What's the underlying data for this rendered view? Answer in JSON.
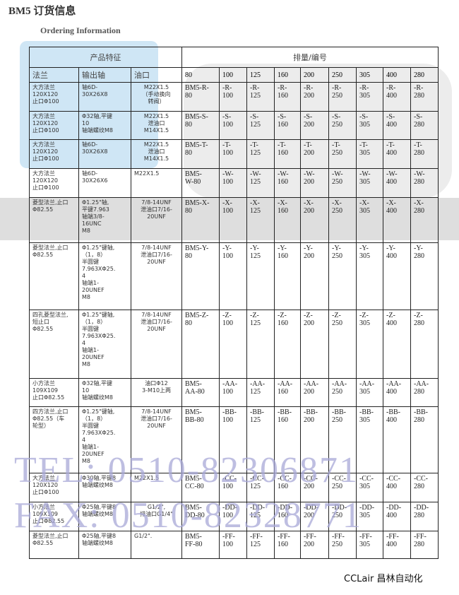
{
  "title": "BM5 订货信息",
  "subtitle": "Ordering Information",
  "header": {
    "features": "产品特征",
    "displacement": "排量/编号",
    "flange": "法兰",
    "shaft": "输出轴",
    "port": "油口",
    "sizes": [
      "80",
      "100",
      "125",
      "160",
      "200",
      "250",
      "305",
      "400",
      "280"
    ]
  },
  "rows": [
    {
      "flange": "大方法兰\n120X120\n止口Φ100",
      "shaft": "轴6D-\n30X26X8",
      "port": "M22X1.5\n（手动换向\n转阀）",
      "codes": [
        "BM5-R-\n80",
        "-R-\n100",
        "-R-\n125",
        "-R-\n160",
        "-R-\n200",
        "-R-\n250",
        "-R-\n305",
        "-R-\n400",
        "-R-\n280"
      ]
    },
    {
      "flange": "大方法兰\n120X120\n止口Φ100",
      "shaft": "Φ32轴,平键\n10\n轴端螺纹M8",
      "port": "M22X1.5\n泄油口\nM14X1.5",
      "codes": [
        "BM5-S-\n80",
        "-S-\n100",
        "-S-\n125",
        "-S-\n160",
        "-S-\n200",
        "-S-\n250",
        "-S-\n305",
        "-S-\n400",
        "-S-\n280"
      ]
    },
    {
      "flange": "大方法兰\n120X120\n止口Φ100",
      "shaft": "轴6D-\n30X26X8",
      "port": "M22X1.5\n泄油口\nM14X1.5",
      "codes": [
        "BM5-T-\n80",
        "-T-\n100",
        "-T-\n125",
        "-T-\n160",
        "-T-\n200",
        "-T-\n250",
        "-T-\n305",
        "-T-\n400",
        "-T-\n280"
      ]
    },
    {
      "flange": "大方法兰\n120X120\n止口Φ100",
      "shaft": "轴6D-\n30X26X6",
      "port": "M22X1.5",
      "portLeft": true,
      "codes": [
        "BM5-\nW-80",
        "-W-\n100",
        "-W-\n125",
        "-W-\n160",
        "-W-\n200",
        "-W-\n250",
        "-W-\n305",
        "-W-\n400",
        "-W-\n280"
      ]
    },
    {
      "flange": "菱型法兰,止口\nΦ82.55",
      "shaft": "Φ1.25\"轴,\n平键7.963\n轴端3/8-\n16UNC\nM8",
      "port": "7/8-14UNF\n泄油口7/16-\n20UNF",
      "codes": [
        "BM5-X-\n80",
        "-X-\n100",
        "-X-\n125",
        "-X-\n160",
        "-X-\n200",
        "-X-\n250",
        "-X-\n305",
        "-X-\n400",
        "-X-\n280"
      ]
    },
    {
      "flange": "菱型法兰,止口\nΦ82.55",
      "shaft": "Φ1.25\"键轴,\n（1，8）\n半圆键\n7.963XΦ25.\n4\n轴端1-\n20UNEF\nM8",
      "port": "7/8-14UNF\n泄油口7/16-\n20UNF",
      "codes": [
        "BM5-Y-\n80",
        "-Y-\n100",
        "-Y-\n125",
        "-Y-\n160",
        "-Y-\n200",
        "-Y-\n250",
        "-Y-\n305",
        "-Y-\n400",
        "-Y-\n280"
      ]
    },
    {
      "flange": "四孔菱型法兰,\n短止口\nΦ82.55",
      "shaft": "Φ1.25\"键轴,\n（1，8）\n半圆键\n7.963XΦ25.\n4\n轴端1-\n20UNEF\nM8",
      "port": "7/8-14UNF\n泄油口7/16-\n20UNF",
      "codes": [
        "BM5-Z-\n80",
        "-Z-\n100",
        "-Z-\n125",
        "-Z-\n160",
        "-Z-\n200",
        "-Z-\n250",
        "-Z-\n305",
        "-Z-\n400",
        "-Z-\n280"
      ]
    },
    {
      "flange": "小方法兰\n109X109\n止口Φ82.55",
      "shaft": "Φ32轴,平键\n10\n轴端螺纹M8",
      "port": "油口Φ12\n3-M10上两",
      "codes": [
        "BM5-\nAA-80",
        "-AA-\n100",
        "-AA-\n125",
        "-AA-\n160",
        "-AA-\n200",
        "-AA-\n250",
        "-AA-\n305",
        "-AA-\n400",
        "-AA-\n280"
      ]
    },
    {
      "flange": "四方法兰,止口\nΦ82.55（车\n轮型）",
      "shaft": "Φ1.25\"键轴,\n（1，8）\n半圆键\n7.963XΦ25.\n4\n轴端1-\n20UNEF\nM8",
      "port": "7/8-14UNF\n泄油口7/16-\n20UNF",
      "codes": [
        "BM5-\nBB-80",
        "-BB-\n100",
        "-BB-\n125",
        "-BB-\n160",
        "-BB-\n200",
        "-BB-\n250",
        "-BB-\n305",
        "-BB-\n400",
        "-BB-\n280"
      ]
    },
    {
      "flange": "大方法兰\n120X120\n止口Φ100",
      "shaft": "Φ30轴,平键8\n轴端螺纹M8",
      "port": "M22X1.5",
      "portLeft": true,
      "codes": [
        "BM5-\nCC-80",
        "-CC-\n100",
        "-CC-\n125",
        "-CC-\n160",
        "-CC-\n200",
        "-CC-\n250",
        "-CC-\n305",
        "-CC-\n400",
        "-CC-\n280"
      ]
    },
    {
      "flange": "小方法兰\n109X109\n止口Φ82.55",
      "shaft": "Φ25轴,平键8\n轴端螺纹M8",
      "port": "G1/2\",\n排油口G1/4\"",
      "codes": [
        "BM5-\nDD-80",
        "-DD-\n100",
        "-DD-\n125",
        "-DD-\n160",
        "-DD-\n200",
        "-DD-\n250",
        "-DD-\n305",
        "-DD-\n400",
        "-DD-\n280"
      ]
    },
    {
      "flange": "菱型法兰,止口\nΦ82.55",
      "shaft": "Φ25轴,平键8\n轴端螺纹M8",
      "port": "G1/2\".",
      "portLeft": true,
      "codes": [
        "BM5-\nFF-80",
        "-FF-\n100",
        "-FF-\n125",
        "-FF-\n160",
        "-FF-\n200",
        "-FF-\n250",
        "-FF-\n305",
        "-FF-\n400",
        "-FF-\n280"
      ]
    }
  ],
  "watermark": {
    "tel": "TEL: 0510-82306871",
    "fax": "FAX: 0510-82328771"
  },
  "footer": "CCLair 昌林自动化"
}
